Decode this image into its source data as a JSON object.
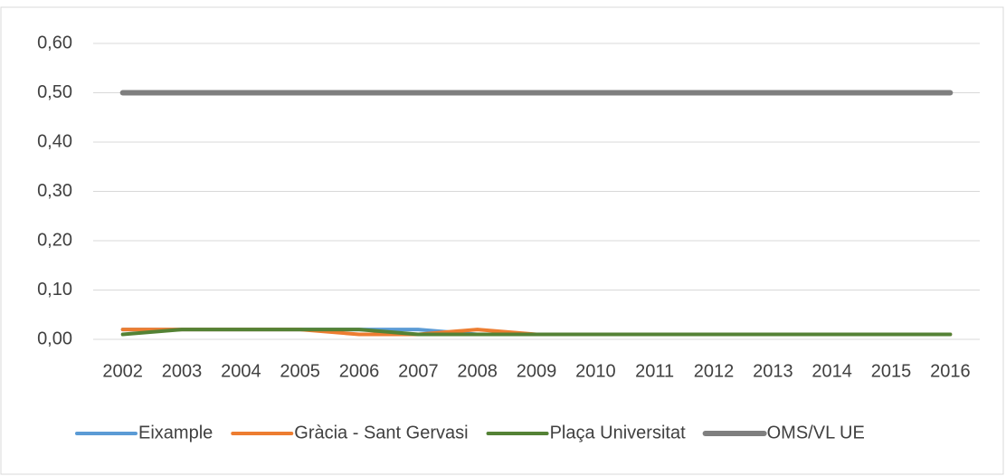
{
  "chart_data": {
    "type": "line",
    "categories": [
      "2002",
      "2003",
      "2004",
      "2005",
      "2006",
      "2007",
      "2008",
      "2009",
      "2010",
      "2011",
      "2012",
      "2013",
      "2014",
      "2015",
      "2016"
    ],
    "series": [
      {
        "name": "Eixample",
        "color": "#5b9bd5",
        "values": [
          0.02,
          0.02,
          0.02,
          0.02,
          0.02,
          0.02,
          0.01,
          0.01,
          0.01,
          0.01,
          0.01,
          0.01,
          0.01,
          0.01,
          0.01
        ]
      },
      {
        "name": "Gràcia - Sant Gervasi",
        "color": "#ed7d31",
        "values": [
          0.02,
          0.02,
          0.02,
          0.02,
          0.01,
          0.01,
          0.02,
          0.01,
          0.01,
          0.01,
          0.01,
          0.01,
          0.01,
          0.01,
          0.01
        ]
      },
      {
        "name": "Plaça Universitat",
        "color": "#548235",
        "values": [
          0.01,
          0.02,
          0.02,
          0.02,
          0.02,
          0.01,
          0.01,
          0.01,
          0.01,
          0.01,
          0.01,
          0.01,
          0.01,
          0.01,
          0.01
        ]
      },
      {
        "name": "OMS/VL UE",
        "color": "#7f7f7f",
        "values": [
          0.5,
          0.5,
          0.5,
          0.5,
          0.5,
          0.5,
          0.5,
          0.5,
          0.5,
          0.5,
          0.5,
          0.5,
          0.5,
          0.5,
          0.5
        ]
      }
    ],
    "ylim": [
      0,
      0.6
    ],
    "yticks": [
      {
        "value": 0,
        "label": "0,00"
      },
      {
        "value": 0.1,
        "label": "0,10"
      },
      {
        "value": 0.2,
        "label": "0,20"
      },
      {
        "value": 0.3,
        "label": "0,30"
      },
      {
        "value": 0.4,
        "label": "0,40"
      },
      {
        "value": 0.5,
        "label": "0,50"
      },
      {
        "value": 0.6,
        "label": "0,60"
      }
    ],
    "grid": true,
    "legend": "bottom"
  }
}
